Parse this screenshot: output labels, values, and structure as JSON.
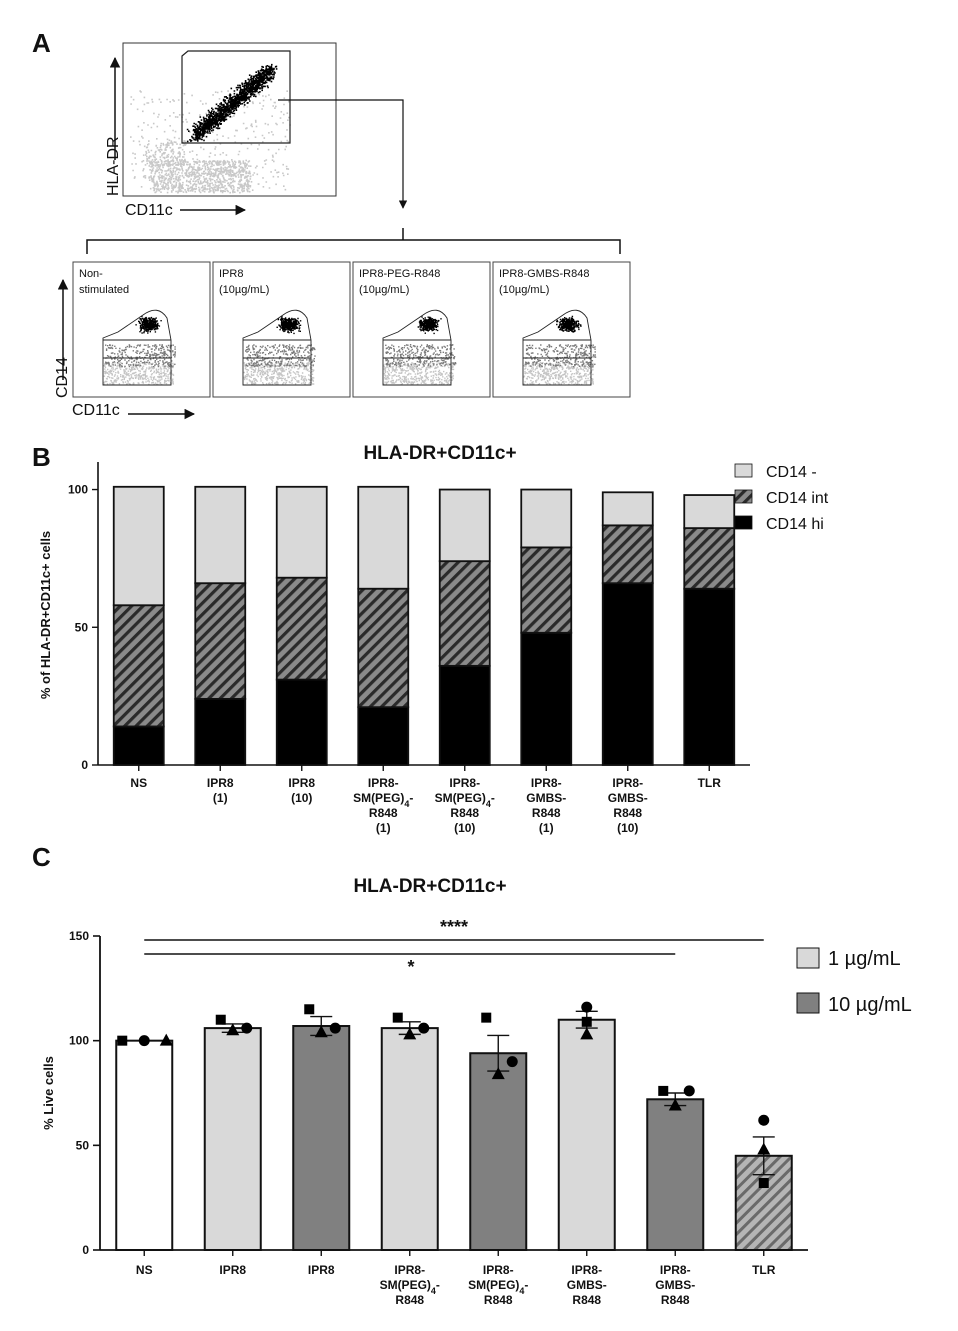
{
  "panels": {
    "a": {
      "letter": "A",
      "gate_plot": {
        "y_label": "HLA-DR",
        "x_label": "CD11c"
      },
      "subplots": [
        {
          "line1": "Non-",
          "line2": "stimulated"
        },
        {
          "line1": "IPR8",
          "line2": "(10µg/mL)"
        },
        {
          "line1": "IPR8-PEG-R848",
          "line2": "(10µg/mL)"
        },
        {
          "line1": "IPR8-GMBS-R848",
          "line2": "(10µg/mL)"
        }
      ],
      "sub_y_label": "CD14",
      "sub_x_label": "CD11c"
    },
    "b": {
      "letter": "B"
    },
    "c": {
      "letter": "C"
    }
  },
  "chart_data": [
    {
      "type": "bar",
      "stacked": true,
      "title": "HLA-DR+CD11c+",
      "xlabel": "",
      "ylabel": "% of HLA-DR+CD11c+ cells",
      "ylim": [
        0,
        110
      ],
      "yticks": [
        0,
        50,
        100
      ],
      "categories": [
        [
          "NS"
        ],
        [
          "IPR8",
          "(1)"
        ],
        [
          "IPR8",
          "(10)"
        ],
        [
          "IPR8-",
          "SM(PEG)4-",
          "R848",
          "(1)"
        ],
        [
          "IPR8-",
          "SM(PEG)4-",
          "R848",
          "(10)"
        ],
        [
          "IPR8-",
          "GMBS-",
          "R848",
          "(1)"
        ],
        [
          "IPR8-",
          "GMBS-",
          "R848",
          "(10)"
        ],
        [
          "TLR"
        ]
      ],
      "series": [
        {
          "name": "CD14 hi",
          "color": "#000000",
          "pattern": "solid",
          "values": [
            14,
            24,
            31,
            21,
            36,
            48,
            66,
            64
          ]
        },
        {
          "name": "CD14 int",
          "color": "#7f7f7f",
          "pattern": "hatched",
          "values": [
            44,
            42,
            37,
            43,
            38,
            31,
            21,
            22
          ]
        },
        {
          "name": "CD14 -",
          "color": "#d9d9d9",
          "pattern": "solid",
          "values": [
            43,
            35,
            33,
            37,
            26,
            21,
            12,
            12
          ]
        }
      ],
      "legend": [
        "CD14 -",
        "CD14 int",
        "CD14 hi"
      ],
      "legend_position": "top-right"
    },
    {
      "type": "bar",
      "title": "HLA-DR+CD11c+",
      "xlabel": "",
      "ylabel": "% Live cells",
      "ylim": [
        0,
        150
      ],
      "yticks": [
        0,
        50,
        100,
        150
      ],
      "categories": [
        [
          "NS"
        ],
        [
          "IPR8"
        ],
        [
          "IPR8"
        ],
        [
          "IPR8-",
          "SM(PEG)4-",
          "R848"
        ],
        [
          "IPR8-",
          "SM(PEG)4-",
          "R848"
        ],
        [
          "IPR8-",
          "GMBS-",
          "R848"
        ],
        [
          "IPR8-",
          "GMBS-",
          "R848"
        ],
        [
          "TLR"
        ]
      ],
      "values": [
        100,
        106,
        107,
        106,
        94,
        110,
        72,
        45
      ],
      "errors": [
        0,
        2,
        4.5,
        3,
        8.5,
        4,
        3,
        9
      ],
      "fill_groups": [
        "none",
        "1",
        "10",
        "1",
        "10",
        "1",
        "10",
        "tlr"
      ],
      "fill_colors": {
        "none": "#ffffff",
        "1": "#d9d9d9",
        "10": "#808080",
        "tlr": "#9a9a9a"
      },
      "points": [
        [
          [
            {
              "shape": "square",
              "v": 100
            },
            {
              "shape": "circle",
              "v": 100
            },
            {
              "shape": "triangle",
              "v": 100
            }
          ]
        ],
        [
          [
            {
              "shape": "square",
              "v": 110
            },
            {
              "shape": "circle",
              "v": 106
            },
            {
              "shape": "triangle",
              "v": 105
            }
          ]
        ],
        [
          [
            {
              "shape": "square",
              "v": 115
            },
            {
              "shape": "circle",
              "v": 106
            },
            {
              "shape": "triangle",
              "v": 104
            }
          ]
        ],
        [
          [
            {
              "shape": "square",
              "v": 111
            },
            {
              "shape": "circle",
              "v": 106
            },
            {
              "shape": "triangle",
              "v": 103
            }
          ]
        ],
        [
          [
            {
              "shape": "square",
              "v": 111
            },
            {
              "shape": "circle",
              "v": 90
            },
            {
              "shape": "triangle",
              "v": 84
            }
          ]
        ],
        [
          [
            {
              "shape": "circle",
              "v": 116
            },
            {
              "shape": "square",
              "v": 109
            },
            {
              "shape": "triangle",
              "v": 103
            }
          ]
        ],
        [
          [
            {
              "shape": "square",
              "v": 76
            },
            {
              "shape": "circle",
              "v": 76
            },
            {
              "shape": "triangle",
              "v": 69
            }
          ]
        ],
        [
          [
            {
              "shape": "circle",
              "v": 62
            },
            {
              "shape": "triangle",
              "v": 48
            },
            {
              "shape": "square",
              "v": 32
            }
          ]
        ]
      ],
      "significance": [
        {
          "from": 0,
          "to": 7,
          "label": "****"
        },
        {
          "from": 0,
          "to": 6,
          "label": "*"
        }
      ],
      "legend": [
        "1 µg/mL",
        "10 µg/mL"
      ],
      "legend_position": "top-right"
    }
  ]
}
